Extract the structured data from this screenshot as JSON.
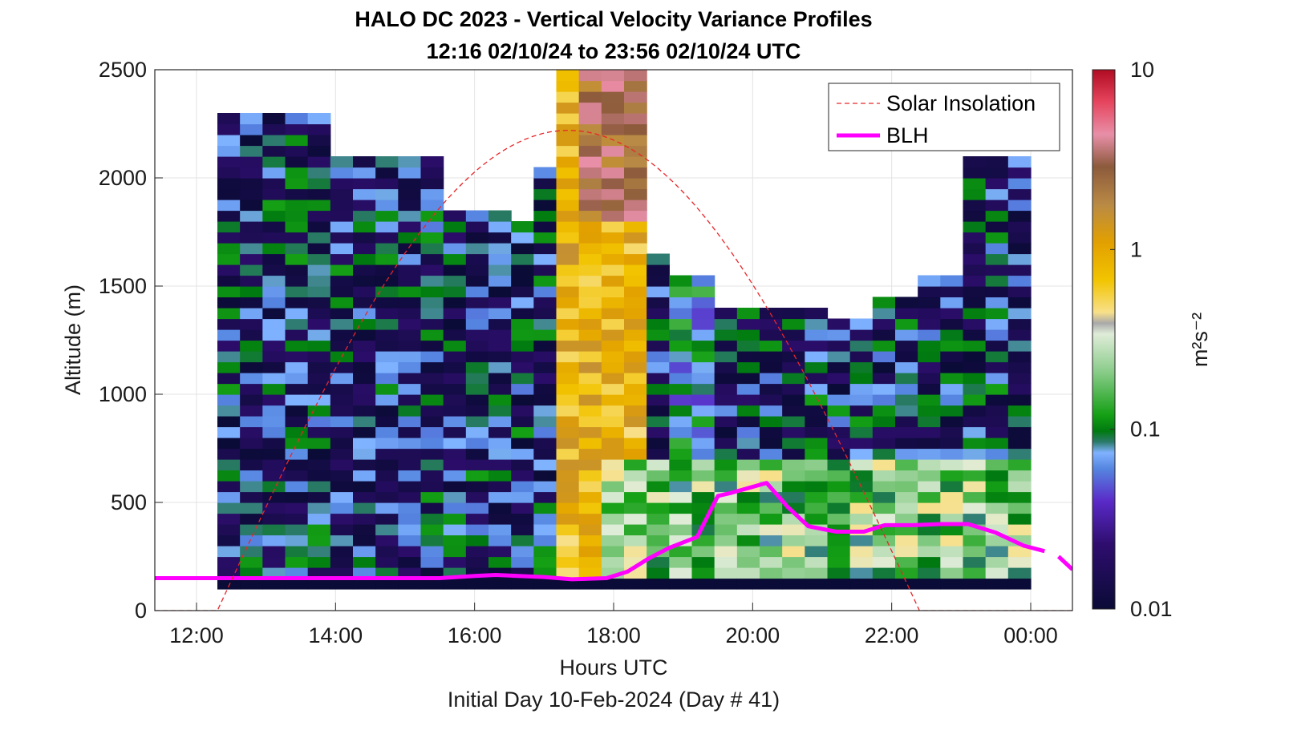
{
  "chart_data": {
    "type": "heatmap",
    "title": "HALO DC 2023 - Vertical Velocity Variance Profiles",
    "subtitle": "12:16 02/10/24 to 23:56 02/10/24  UTC",
    "xlabel": "Hours UTC",
    "xlabel2": "Initial Day 10-Feb-2024 (Day # 41)",
    "ylabel": "Altitude (m)",
    "colorbar_label": "m²s⁻²",
    "x_ticks": [
      "12:00",
      "14:00",
      "16:00",
      "18:00",
      "20:00",
      "22:00",
      "00:00"
    ],
    "y_ticks": [
      "0",
      "500",
      "1000",
      "1500",
      "2000",
      "2500"
    ],
    "colorbar_ticks": [
      "0.01",
      "0.1",
      "1",
      "10"
    ],
    "colorbar_scale": "log",
    "clim": [
      0.01,
      10
    ],
    "xlim": [
      11.4,
      24.6
    ],
    "ylim": [
      0,
      2500
    ],
    "grid": true,
    "legend_position": "top-right",
    "legend": [
      "Solar Insolation",
      "BLH"
    ],
    "colors": {
      "blh": "#ff00ff",
      "solar": "#e8262a"
    },
    "heatmap_description": "Variance profiles from 12:16 to 23:56 UTC; high variance (~1-3 m2s-2, yellow/orange/brown) in a convective column near 17:00-18:30 extending to 2500 m; low variance (~0.01-0.03, navy/purple) elsewhere, moderate (~0.1, green) near 20:00-24:00 below 700 m.",
    "series": [
      {
        "name": "BLH",
        "x": [
          11.4,
          15.5,
          16.0,
          16.3,
          17.0,
          17.4,
          17.9,
          18.2,
          18.5,
          18.8,
          19.2,
          19.5,
          19.7,
          20.2,
          20.5,
          20.8,
          21.2,
          21.6,
          21.9,
          22.3,
          22.7,
          23.1,
          23.5,
          23.9,
          24.2
        ],
        "y": [
          150,
          150,
          160,
          165,
          155,
          145,
          150,
          180,
          240,
          290,
          340,
          530,
          545,
          590,
          480,
          390,
          365,
          365,
          395,
          395,
          400,
          400,
          360,
          300,
          275
        ]
      },
      {
        "name": "BLH (after 00:00)",
        "x": [
          24.4,
          24.6
        ],
        "y": [
          250,
          190
        ]
      },
      {
        "name": "Solar Insolation",
        "x_range": [
          12.3,
          22.4
        ],
        "peak_x": 17.35,
        "peak_y": 2220
      }
    ]
  }
}
